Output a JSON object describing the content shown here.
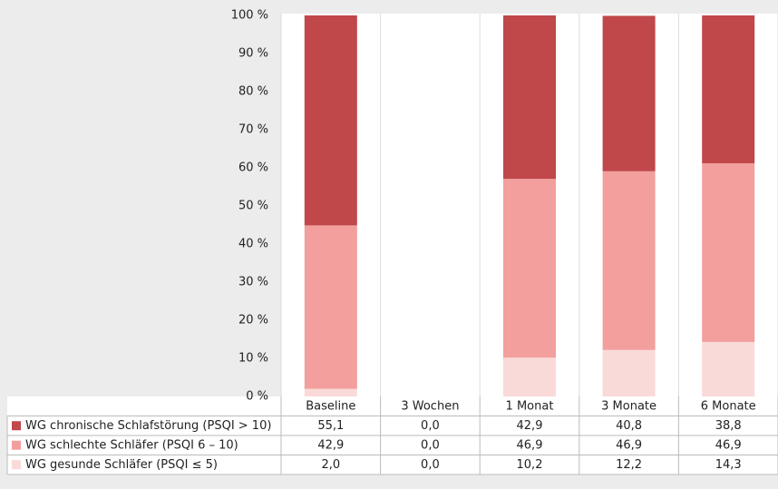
{
  "chart_data": {
    "type": "stacked-bar",
    "categories": [
      "Baseline",
      "3 Wochen",
      "1 Monat",
      "3 Monate",
      "6 Monate"
    ],
    "series": [
      {
        "name": "WG gesunde Schläfer (PSQI ≤ 5)",
        "color": "#fadad8",
        "values": [
          2.0,
          0.0,
          10.2,
          12.2,
          14.3
        ],
        "value_labels": [
          "2,0",
          "0,0",
          "10,2",
          "12,2",
          "14,3"
        ]
      },
      {
        "name": "WG schlechte Schläfer (PSQI 6 – 10)",
        "color": "#f29f9d",
        "values": [
          42.9,
          0.0,
          46.9,
          46.9,
          46.9
        ],
        "value_labels": [
          "42,9",
          "0,0",
          "46,9",
          "46,9",
          "46,9"
        ]
      },
      {
        "name": "WG chronische Schlafstörung (PSQI > 10)",
        "color": "#c0474a",
        "values": [
          55.1,
          0.0,
          42.9,
          40.8,
          38.8
        ],
        "value_labels": [
          "55,1",
          "0,0",
          "42,9",
          "40,8",
          "38,8"
        ]
      }
    ],
    "ylim": [
      0,
      100
    ],
    "yticks": [
      {
        "value": 0,
        "label": "0 %"
      },
      {
        "value": 10,
        "label": "10 %"
      },
      {
        "value": 20,
        "label": "20 %"
      },
      {
        "value": 30,
        "label": "30 %"
      },
      {
        "value": 40,
        "label": "40 %"
      },
      {
        "value": 50,
        "label": "50 %"
      },
      {
        "value": 60,
        "label": "60 %"
      },
      {
        "value": 70,
        "label": "70 %"
      },
      {
        "value": 80,
        "label": "80 %"
      },
      {
        "value": 90,
        "label": "90 %"
      },
      {
        "value": 100,
        "label": "100 %"
      }
    ],
    "grid": false
  }
}
